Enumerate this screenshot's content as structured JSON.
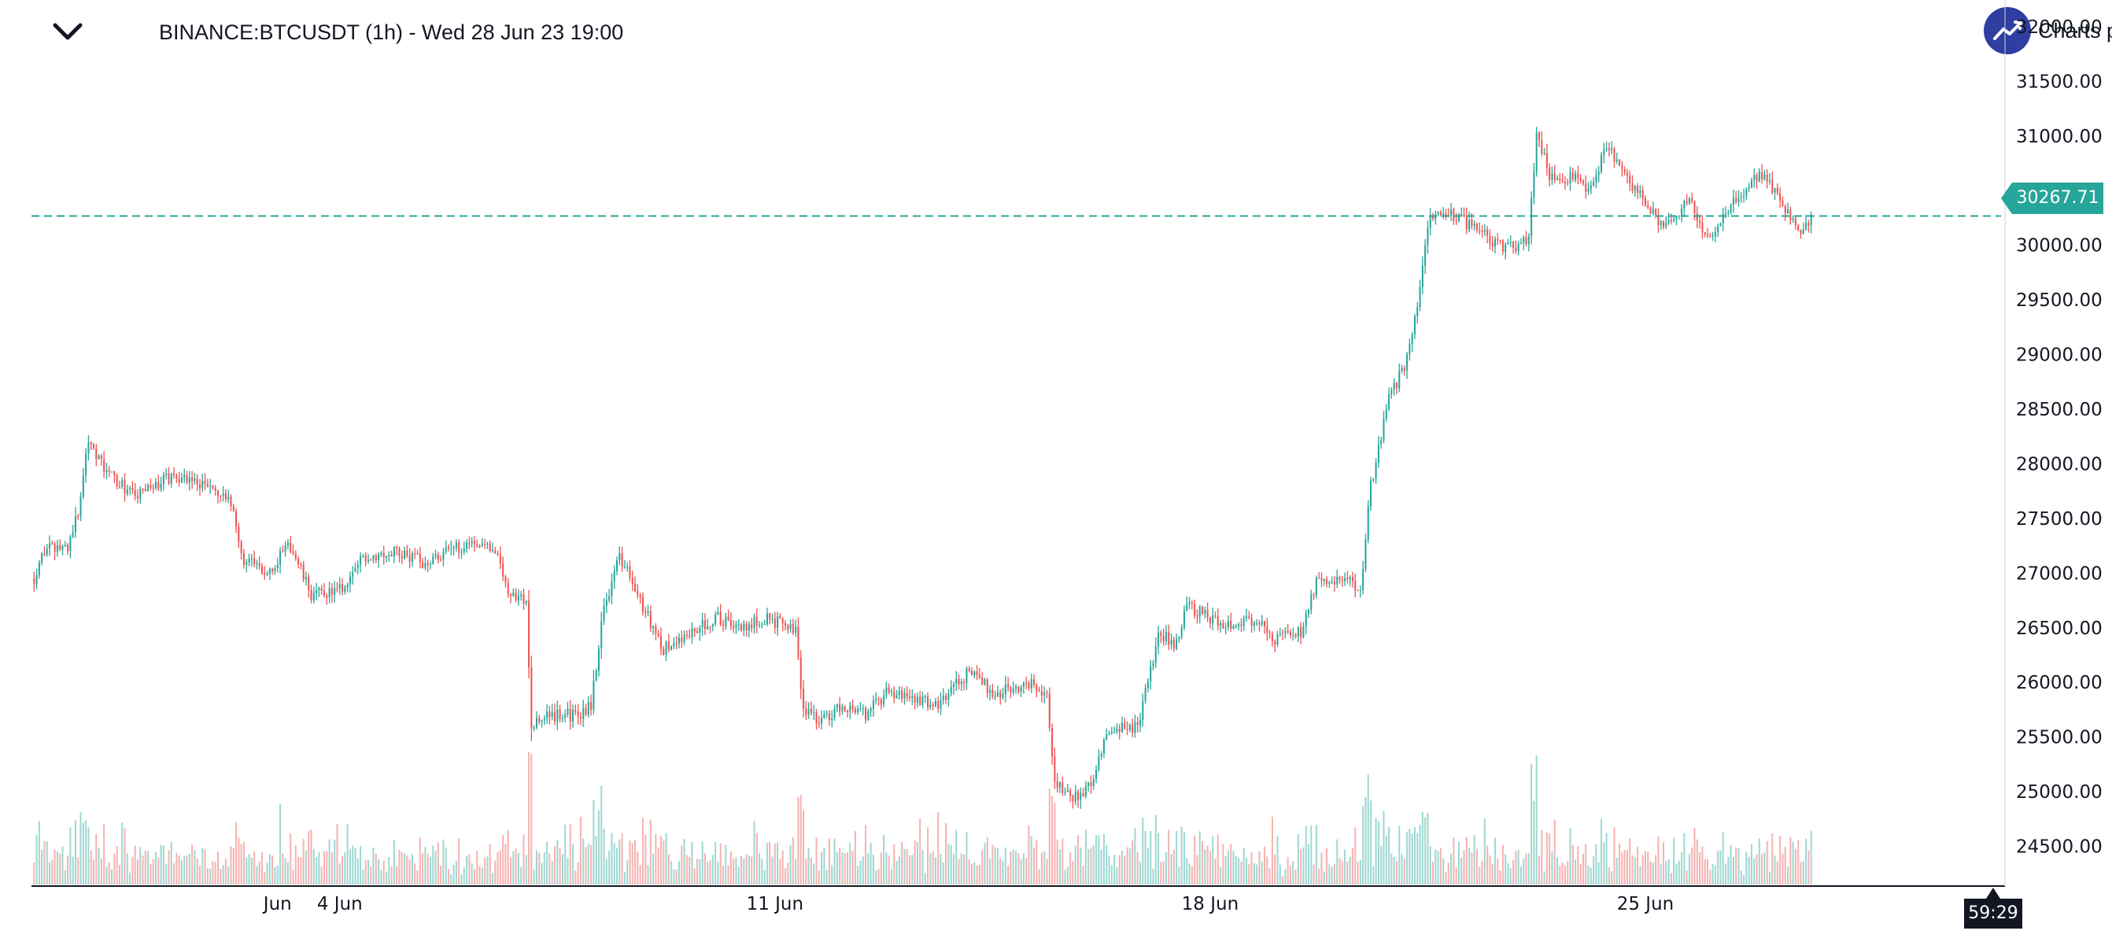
{
  "header": {
    "title": "BINANCE:BTCUSDT (1h) - Wed 28 Jun 23 19:00",
    "brand_text": "Charts p"
  },
  "last_price": "30267.71",
  "countdown": "59:29",
  "colors": {
    "up": "#26a69a",
    "down": "#ef5350",
    "up_volume": "#9fd8d2",
    "down_volume": "#f6b3b1",
    "last_price_line": "#26a69a",
    "brand": "#2f3ea0",
    "text": "#131722"
  },
  "chart_data": {
    "type": "candlestick",
    "symbol": "BINANCE:BTCUSDT",
    "interval": "1h",
    "y_axis": {
      "position": "right",
      "tick_labels": [
        "24500.00",
        "25000.00",
        "25500.00",
        "26000.00",
        "26500.00",
        "27000.00",
        "27500.00",
        "28000.00",
        "28500.00",
        "29000.00",
        "29500.00",
        "30000.00",
        "30500.00",
        "31000.00",
        "31500.00",
        "32000.00"
      ],
      "range": [
        24180,
        32100
      ]
    },
    "x_axis": {
      "tick_labels": [
        "Jun",
        "4 Jun",
        "11 Jun",
        "18 Jun",
        "25 Jun"
      ],
      "tick_hours": [
        165,
        189,
        357,
        525,
        693
      ]
    },
    "x_range_hours": [
      70,
      830
    ],
    "grid": false,
    "volume_pane": true,
    "last_price_line": 30267.71,
    "keypoints": [
      {
        "hour": 71,
        "price": 26950
      },
      {
        "hour": 74,
        "price": 27200
      },
      {
        "hour": 84,
        "price": 27250
      },
      {
        "hour": 88,
        "price": 27550
      },
      {
        "hour": 92,
        "price": 28250
      },
      {
        "hour": 98,
        "price": 27950
      },
      {
        "hour": 110,
        "price": 27700
      },
      {
        "hour": 125,
        "price": 27900
      },
      {
        "hour": 138,
        "price": 27800
      },
      {
        "hour": 148,
        "price": 27600
      },
      {
        "hour": 151,
        "price": 27150
      },
      {
        "hour": 160,
        "price": 27000
      },
      {
        "hour": 170,
        "price": 27250
      },
      {
        "hour": 178,
        "price": 26800
      },
      {
        "hour": 190,
        "price": 26850
      },
      {
        "hour": 198,
        "price": 27150
      },
      {
        "hour": 210,
        "price": 27200
      },
      {
        "hour": 222,
        "price": 27100
      },
      {
        "hour": 240,
        "price": 27300
      },
      {
        "hour": 248,
        "price": 27250
      },
      {
        "hour": 255,
        "price": 26800
      },
      {
        "hour": 261,
        "price": 26750
      },
      {
        "hour": 263,
        "price": 25600
      },
      {
        "hour": 270,
        "price": 25700
      },
      {
        "hour": 282,
        "price": 25700
      },
      {
        "hour": 286,
        "price": 25800
      },
      {
        "hour": 291,
        "price": 26700
      },
      {
        "hour": 297,
        "price": 27150
      },
      {
        "hour": 306,
        "price": 26700
      },
      {
        "hour": 314,
        "price": 26300
      },
      {
        "hour": 324,
        "price": 26450
      },
      {
        "hour": 334,
        "price": 26600
      },
      {
        "hour": 344,
        "price": 26500
      },
      {
        "hour": 354,
        "price": 26600
      },
      {
        "hour": 365,
        "price": 26450
      },
      {
        "hour": 368,
        "price": 25750
      },
      {
        "hour": 376,
        "price": 25650
      },
      {
        "hour": 383,
        "price": 25800
      },
      {
        "hour": 392,
        "price": 25700
      },
      {
        "hour": 400,
        "price": 25900
      },
      {
        "hour": 412,
        "price": 25850
      },
      {
        "hour": 420,
        "price": 25800
      },
      {
        "hour": 432,
        "price": 26100
      },
      {
        "hour": 442,
        "price": 25900
      },
      {
        "hour": 455,
        "price": 26000
      },
      {
        "hour": 462,
        "price": 25900
      },
      {
        "hour": 465,
        "price": 25100
      },
      {
        "hour": 472,
        "price": 24950
      },
      {
        "hour": 479,
        "price": 25050
      },
      {
        "hour": 485,
        "price": 25550
      },
      {
        "hour": 497,
        "price": 25600
      },
      {
        "hour": 501,
        "price": 26000
      },
      {
        "hour": 505,
        "price": 26450
      },
      {
        "hour": 512,
        "price": 26350
      },
      {
        "hour": 516,
        "price": 26700
      },
      {
        "hour": 528,
        "price": 26550
      },
      {
        "hour": 544,
        "price": 26550
      },
      {
        "hour": 550,
        "price": 26400
      },
      {
        "hour": 560,
        "price": 26450
      },
      {
        "hour": 566,
        "price": 26900
      },
      {
        "hour": 576,
        "price": 26950
      },
      {
        "hour": 583,
        "price": 26850
      },
      {
        "hour": 587,
        "price": 27800
      },
      {
        "hour": 594,
        "price": 28600
      },
      {
        "hour": 600,
        "price": 28900
      },
      {
        "hour": 605,
        "price": 29400
      },
      {
        "hour": 609,
        "price": 30200
      },
      {
        "hour": 618,
        "price": 30300
      },
      {
        "hour": 630,
        "price": 30100
      },
      {
        "hour": 636,
        "price": 30000
      },
      {
        "hour": 644,
        "price": 30000
      },
      {
        "hour": 648,
        "price": 30050
      },
      {
        "hour": 651,
        "price": 31050
      },
      {
        "hour": 656,
        "price": 30650
      },
      {
        "hour": 666,
        "price": 30600
      },
      {
        "hour": 672,
        "price": 30500
      },
      {
        "hour": 678,
        "price": 30900
      },
      {
        "hour": 688,
        "price": 30550
      },
      {
        "hour": 700,
        "price": 30150
      },
      {
        "hour": 710,
        "price": 30400
      },
      {
        "hour": 716,
        "price": 30050
      },
      {
        "hour": 724,
        "price": 30300
      },
      {
        "hour": 731,
        "price": 30500
      },
      {
        "hour": 738,
        "price": 30650
      },
      {
        "hour": 744,
        "price": 30450
      },
      {
        "hour": 752,
        "price": 30100
      },
      {
        "hour": 757,
        "price": 30250
      }
    ]
  }
}
